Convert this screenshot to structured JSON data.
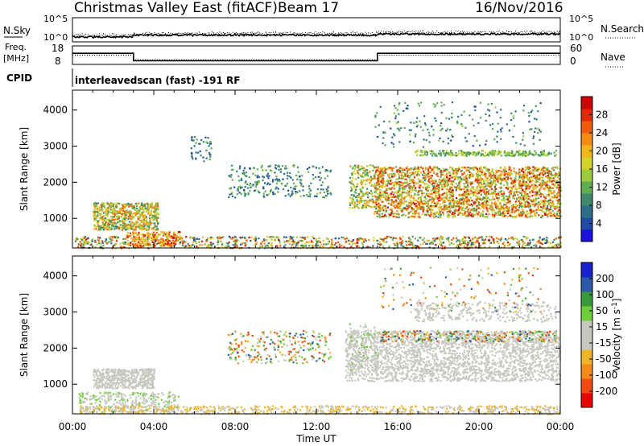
{
  "header": {
    "title": "Christmas Valley East (fitACF)",
    "beam": "Beam 17",
    "date": "16/Nov/2016"
  },
  "noise_panel": {
    "left_label": "N.Sky",
    "left_ticks": [
      "10^5",
      "10^0"
    ],
    "right_label": "N.Search",
    "right_ticks": [
      "10^5",
      "10^0"
    ]
  },
  "freq_panel": {
    "left_label_1": "Freq.",
    "left_label_2": "[MHz]",
    "left_ticks": [
      "18",
      "8"
    ],
    "right_label": "Nave",
    "right_ticks": [
      "60",
      "0"
    ],
    "freq_trace": {
      "x": [
        0,
        3.0,
        3.0,
        15.0,
        15.0,
        24
      ],
      "y": [
        14,
        14,
        10,
        10,
        14,
        14
      ]
    },
    "nave_trace": {
      "x": [
        0,
        3.0,
        3.0,
        15.0,
        15.0,
        24
      ],
      "y": [
        30,
        30,
        15,
        15,
        30,
        30
      ]
    }
  },
  "cpid": {
    "label": "CPID",
    "text": "interleavedscan (fast) -191 RF"
  },
  "chart_data": [
    {
      "type": "heatmap",
      "title": "",
      "xlabel": "",
      "ylabel": "Slant Range [km]",
      "xlim": [
        0,
        24
      ],
      "ylim": [
        180,
        4550
      ],
      "yticks": [
        "4000",
        "3000",
        "2000",
        "1000"
      ],
      "yvalues": [
        4000,
        3000,
        2000,
        1000
      ],
      "colorbar": {
        "label": "Power [dB]",
        "ticks": [
          "28",
          "24",
          "20",
          "16",
          "12",
          "8",
          "4"
        ],
        "range": [
          0,
          32
        ],
        "colors": [
          "#1a10e0",
          "#1e4aa8",
          "#2d6f8a",
          "#3e8a6a",
          "#5fae52",
          "#9ccc3c",
          "#d4d22c",
          "#f2b51f",
          "#f58a14",
          "#f25a0c",
          "#e22a08",
          "#d00000"
        ]
      }
    },
    {
      "type": "heatmap",
      "title": "",
      "xlabel": "Time UT",
      "ylabel": "Slant Range [km]",
      "xlim": [
        0,
        24
      ],
      "ylim": [
        180,
        4550
      ],
      "xticks": [
        "00:00",
        "04:00",
        "08:00",
        "12:00",
        "16:00",
        "20:00",
        "00:00"
      ],
      "xvalues": [
        0,
        4,
        8,
        12,
        16,
        20,
        24
      ],
      "yticks": [
        "4000",
        "3000",
        "2000",
        "1000"
      ],
      "yvalues": [
        4000,
        3000,
        2000,
        1000
      ],
      "colorbar": {
        "label": "Velocity [m s^-1]",
        "ticks": [
          "200",
          "100",
          "50",
          "15",
          "-15",
          "-50",
          "-100",
          "-200"
        ],
        "range": [
          -250,
          250
        ],
        "colors": [
          "#e80000",
          "#f24a10",
          "#f58a18",
          "#f0b428",
          "#c8c8c0",
          "#c8c8c0",
          "#6fcf3a",
          "#3a9a3a",
          "#2a5aa8",
          "#1a20d0"
        ]
      }
    }
  ],
  "scatter_regions": {
    "power": [
      {
        "x0": 1.0,
        "x1": 4.2,
        "y0": 700,
        "y1": 1450,
        "pmin": 8,
        "pmax": 26,
        "n": 650
      },
      {
        "x0": 0.1,
        "x1": 24,
        "y0": 190,
        "y1": 520,
        "pmin": 4,
        "pmax": 30,
        "n": 900
      },
      {
        "x0": 2.6,
        "x1": 5.3,
        "y0": 260,
        "y1": 650,
        "pmin": 14,
        "pmax": 30,
        "n": 220
      },
      {
        "x0": 7.6,
        "x1": 12.7,
        "y0": 1600,
        "y1": 2500,
        "pmin": 4,
        "pmax": 14,
        "n": 260
      },
      {
        "x0": 5.8,
        "x1": 6.8,
        "y0": 2600,
        "y1": 3300,
        "pmin": 4,
        "pmax": 12,
        "n": 45
      },
      {
        "x0": 13.6,
        "x1": 14.8,
        "y0": 1300,
        "y1": 2500,
        "pmin": 8,
        "pmax": 24,
        "n": 200
      },
      {
        "x0": 14.8,
        "x1": 24,
        "y0": 1050,
        "y1": 2450,
        "pmin": 10,
        "pmax": 30,
        "n": 2600
      },
      {
        "x0": 16.8,
        "x1": 23.8,
        "y0": 2750,
        "y1": 2900,
        "pmin": 8,
        "pmax": 18,
        "n": 250
      },
      {
        "x0": 14.8,
        "x1": 23.0,
        "y0": 3000,
        "y1": 4250,
        "pmin": 4,
        "pmax": 14,
        "n": 200
      }
    ],
    "velocity": [
      {
        "x0": 1.0,
        "x1": 4.0,
        "y0": 900,
        "y1": 1450,
        "vmin": -14,
        "vmax": 14,
        "n": 500
      },
      {
        "x0": 0.3,
        "x1": 5.2,
        "y0": 250,
        "y1": 800,
        "vmin": 20,
        "vmax": 60,
        "n": 350
      },
      {
        "x0": 0.3,
        "x1": 24,
        "y0": 190,
        "y1": 420,
        "vmin": -80,
        "vmax": -20,
        "n": 700
      },
      {
        "x0": 7.6,
        "x1": 12.7,
        "y0": 1600,
        "y1": 2500,
        "vmin": -200,
        "vmax": 200,
        "n": 260
      },
      {
        "x0": 13.4,
        "x1": 24,
        "y0": 1100,
        "y1": 2500,
        "vmin": -14,
        "vmax": 14,
        "n": 2400
      },
      {
        "x0": 13.6,
        "x1": 15.0,
        "y0": 1400,
        "y1": 2700,
        "vmin": 20,
        "vmax": 60,
        "n": 120
      },
      {
        "x0": 15.0,
        "x1": 23.8,
        "y0": 2200,
        "y1": 2500,
        "vmin": -200,
        "vmax": 200,
        "n": 300
      },
      {
        "x0": 16.8,
        "x1": 23.8,
        "y0": 2750,
        "y1": 3300,
        "vmin": -14,
        "vmax": 14,
        "n": 300
      },
      {
        "x0": 15.0,
        "x1": 23.0,
        "y0": 3000,
        "y1": 4250,
        "vmin": -200,
        "vmax": 200,
        "n": 150
      }
    ]
  }
}
